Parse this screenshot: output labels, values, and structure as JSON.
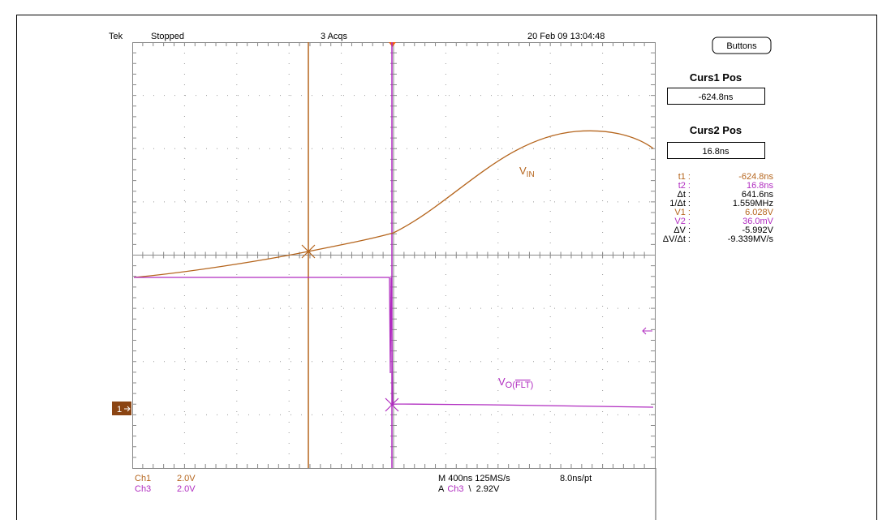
{
  "header": {
    "brand": "Tek",
    "state": "Stopped",
    "acqs": "3 Acqs",
    "datetime": "20 Feb 09 13:04:48",
    "button": "Buttons"
  },
  "panel": {
    "curs1_title": "Curs1 Pos",
    "curs1_value": "-624.8ns",
    "curs2_title": "Curs2 Pos",
    "curs2_value": "16.8ns"
  },
  "readouts": [
    {
      "label": "t1 :",
      "value": "-624.8ns"
    },
    {
      "label": "t2 :",
      "value": "16.8ns"
    },
    {
      "label": "Δt :",
      "value": "641.6ns"
    },
    {
      "label": "1/Δt :",
      "value": "1.559MHz"
    },
    {
      "label": "V1 :",
      "value": "6.028V"
    },
    {
      "label": "V2 :",
      "value": "36.0mV"
    },
    {
      "label": "ΔV :",
      "value": "-5.992V"
    },
    {
      "label": "ΔV/Δt :",
      "value": "-9.339MV/s"
    }
  ],
  "traces": {
    "vin": {
      "main": "V",
      "sub": "IN"
    },
    "vo": {
      "main": "V",
      "sub": "O(",
      "over": "FLT",
      "end": ")"
    },
    "ch1_marker": "1"
  },
  "footer": {
    "ch1": "Ch1",
    "ch1_scale": "2.0V",
    "ch3": "Ch3",
    "ch3_scale": "2.0V",
    "timebase": "M 400ns 125MS/s",
    "resolution": "8.0ns/pt",
    "trig_a": "A",
    "trig_src": "Ch3",
    "trig_slope": "\\",
    "trig_level": "2.92V"
  }
}
